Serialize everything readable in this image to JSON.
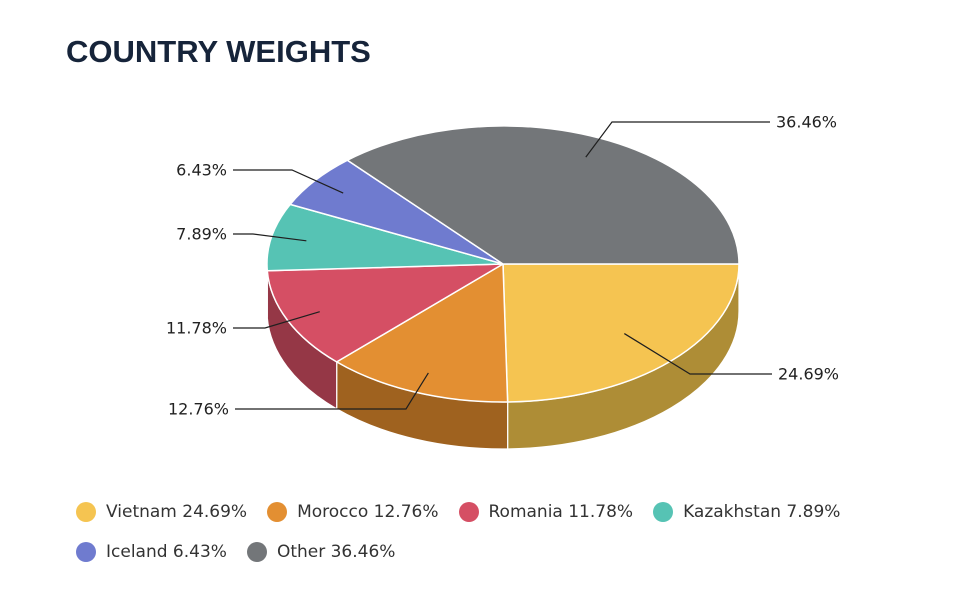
{
  "chart_data": {
    "type": "pie",
    "title": "COUNTRY WEIGHTS",
    "slices": [
      {
        "label": "Vietnam",
        "value": 24.69,
        "data_label": "24.69%",
        "legend": "Vietnam 24.69%",
        "color": "#f5c451",
        "side_color": "#ae8d36"
      },
      {
        "label": "Morocco",
        "value": 12.76,
        "data_label": "12.76%",
        "legend": "Morocco 12.76%",
        "color": "#e38f32",
        "side_color": "#9f621f"
      },
      {
        "label": "Romania",
        "value": 11.78,
        "data_label": "11.78%",
        "legend": "Romania 11.78%",
        "color": "#d54f64",
        "side_color": "#953746"
      },
      {
        "label": "Kazakhstan",
        "value": 7.89,
        "data_label": "7.89%",
        "legend": "Kazakhstan 7.89%",
        "color": "#56c3b4",
        "side_color": "#3c8a80"
      },
      {
        "label": "Iceland",
        "value": 6.43,
        "data_label": "6.43%",
        "legend": "Iceland 6.43%",
        "color": "#6f7bcf",
        "side_color": "#4e5792"
      },
      {
        "label": "Other",
        "value": 36.46,
        "data_label": "36.46%",
        "legend": "Other 36.46%",
        "color": "#737679",
        "side_color": "#525456"
      }
    ],
    "legend_position": "bottom",
    "style": "3d"
  }
}
